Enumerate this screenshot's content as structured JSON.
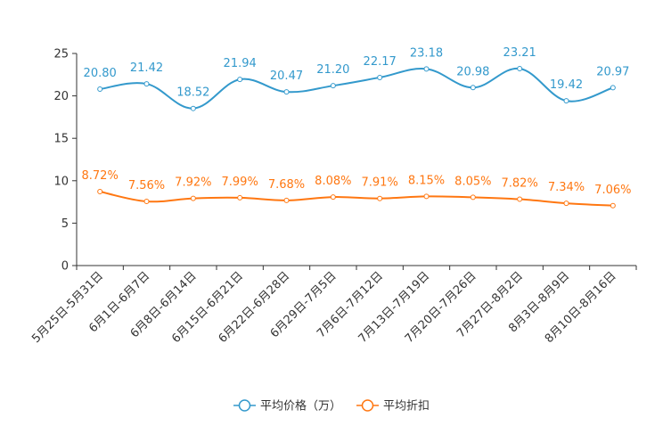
{
  "chart_data": {
    "type": "line",
    "title": "",
    "xlabel": "",
    "ylabel": "",
    "ylim": [
      0,
      25
    ],
    "yticks": [
      0,
      5,
      10,
      15,
      20,
      25
    ],
    "categories": [
      "5月25日-5月31日",
      "6月1日-6月7日",
      "6月8日-6月14日",
      "6月15日-6月21日",
      "6月22日-6月28日",
      "6月29日-7月5日",
      "7月6日-7月12日",
      "7月13日-7月19日",
      "7月20日-7月26日",
      "7月27日-8月2日",
      "8月3日-8月9日",
      "8月10日-8月16日"
    ],
    "series": [
      {
        "name": "平均价格（万）",
        "color": "#3399cc",
        "values": [
          20.8,
          21.42,
          18.52,
          21.94,
          20.47,
          21.2,
          22.17,
          23.18,
          20.98,
          23.21,
          19.42,
          20.97
        ],
        "labels": [
          "20.80",
          "21.42",
          "18.52",
          "21.94",
          "20.47",
          "21.20",
          "22.17",
          "23.18",
          "20.98",
          "23.21",
          "19.42",
          "20.97"
        ]
      },
      {
        "name": "平均折扣",
        "color": "#ff7711",
        "values": [
          8.72,
          7.56,
          7.92,
          7.99,
          7.68,
          8.08,
          7.91,
          8.15,
          8.05,
          7.82,
          7.34,
          7.06
        ],
        "labels": [
          "8.72%",
          "7.56%",
          "7.92%",
          "7.99%",
          "7.68%",
          "8.08%",
          "7.91%",
          "8.15%",
          "8.05%",
          "7.82%",
          "7.34%",
          "7.06%"
        ]
      }
    ],
    "grid": false,
    "legend": "bottom-center"
  }
}
